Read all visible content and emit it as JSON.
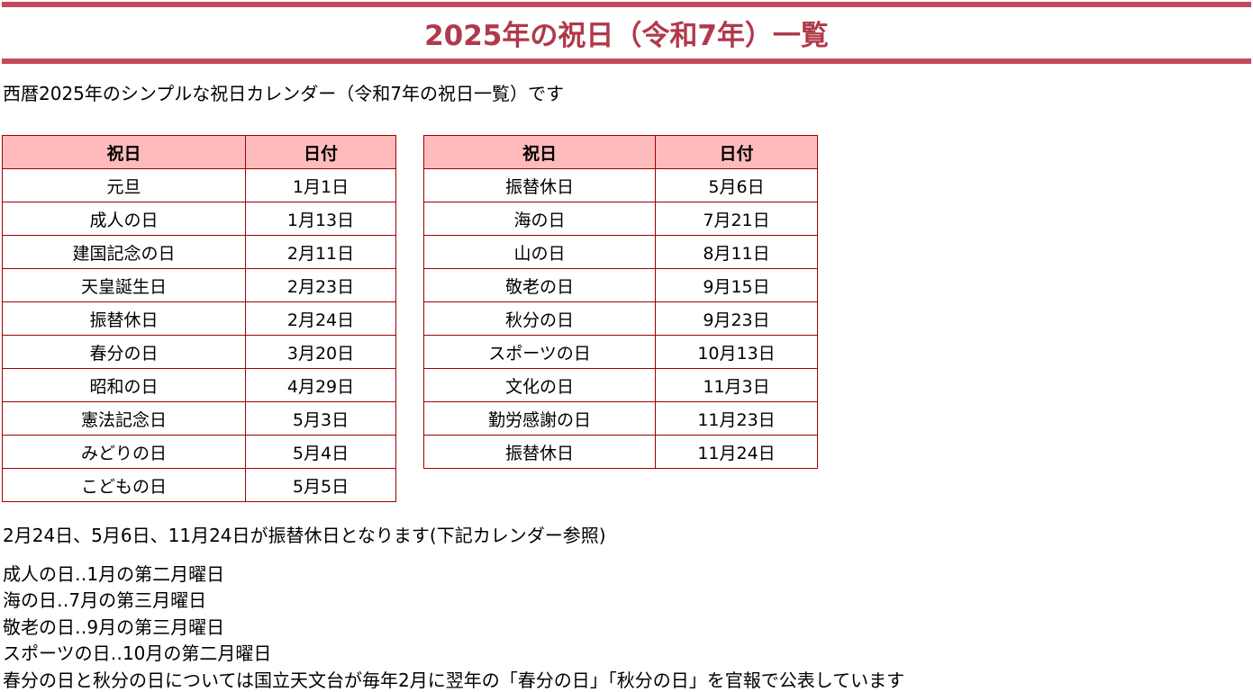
{
  "title": "2025年の祝日（令和7年）一覧",
  "intro": "西暦2025年のシンプルな祝日カレンダー（令和7年の祝日一覧）です",
  "columns": [
    "祝日",
    "日付"
  ],
  "table1": [
    [
      "元旦",
      "1月1日"
    ],
    [
      "成人の日",
      "1月13日"
    ],
    [
      "建国記念の日",
      "2月11日"
    ],
    [
      "天皇誕生日",
      "2月23日"
    ],
    [
      "振替休日",
      "2月24日"
    ],
    [
      "春分の日",
      "3月20日"
    ],
    [
      "昭和の日",
      "4月29日"
    ],
    [
      "憲法記念日",
      "5月3日"
    ],
    [
      "みどりの日",
      "5月4日"
    ],
    [
      "こどもの日",
      "5月5日"
    ]
  ],
  "table2": [
    [
      "振替休日",
      "5月6日"
    ],
    [
      "海の日",
      "7月21日"
    ],
    [
      "山の日",
      "8月11日"
    ],
    [
      "敬老の日",
      "9月15日"
    ],
    [
      "秋分の日",
      "9月23日"
    ],
    [
      "スポーツの日",
      "10月13日"
    ],
    [
      "文化の日",
      "11月3日"
    ],
    [
      "勤労感謝の日",
      "11月23日"
    ],
    [
      "振替休日",
      "11月24日"
    ]
  ],
  "notes": {
    "substitute": "2月24日、5月6日、11月24日が振替休日となります(下記カレンダー参照)",
    "lines": [
      "成人の日‥1月の第二月曜日",
      "海の日‥7月の第三月曜日",
      "敬老の日‥9月の第三月曜日",
      "スポーツの日‥10月の第二月曜日",
      "春分の日と秋分の日については国立天文台が毎年2月に翌年の「春分の日」「秋分の日」を官報で公表しています"
    ]
  }
}
